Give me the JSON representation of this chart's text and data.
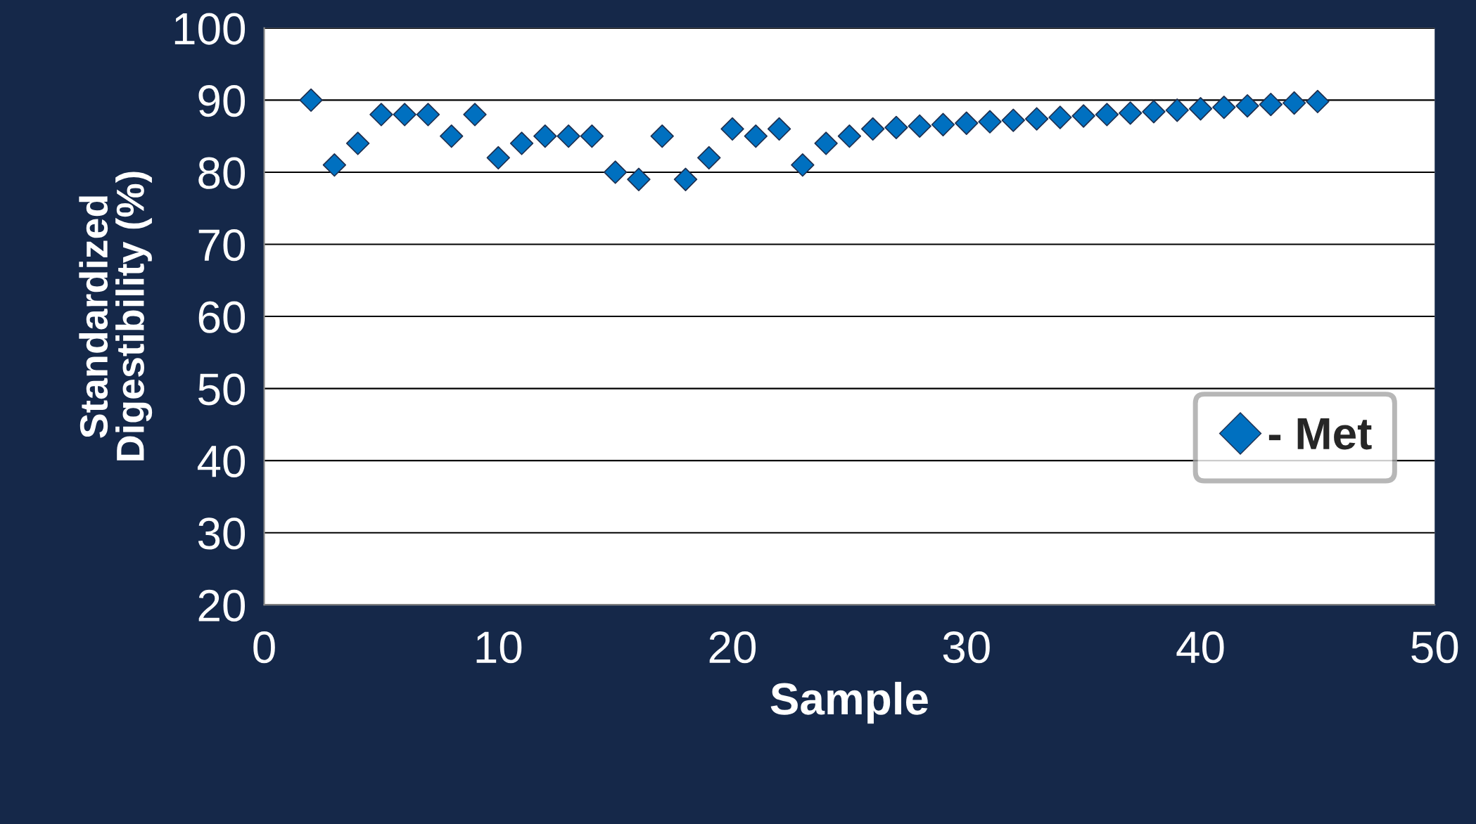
{
  "chart_data": {
    "type": "scatter",
    "xlabel": "Sample",
    "ylabel": "Standardized\nDigestibility (%)",
    "x": [
      2,
      3,
      4,
      5,
      6,
      7,
      8,
      9,
      10,
      11,
      12,
      13,
      14,
      15,
      16,
      17,
      18,
      19,
      20,
      21,
      22,
      23,
      24,
      25,
      26,
      27,
      28,
      29,
      30,
      31,
      32,
      33,
      34,
      35,
      36,
      37,
      38,
      39,
      40,
      41,
      42,
      43,
      44,
      45
    ],
    "series": [
      {
        "name": "- Met",
        "color": "#0070c0",
        "values": [
          90,
          81,
          84,
          88,
          88,
          88,
          85,
          88,
          82,
          84,
          85,
          85,
          85,
          80,
          79,
          85,
          79,
          82,
          86,
          85,
          86,
          81,
          84,
          85,
          86,
          86.2,
          86.4,
          86.6,
          86.8,
          87,
          87.2,
          87.4,
          87.6,
          87.8,
          88,
          88.2,
          88.4,
          88.6,
          88.8,
          89,
          89.2,
          89.4,
          89.6,
          89.8
        ]
      }
    ],
    "xlim": [
      0,
      50
    ],
    "xticks": [
      0,
      10,
      20,
      30,
      40,
      50
    ],
    "ylim": [
      20,
      100
    ],
    "yticks": [
      20,
      30,
      40,
      50,
      60,
      70,
      80,
      90,
      100
    ],
    "grid": "y",
    "legend": "right",
    "marker": "diamond"
  }
}
